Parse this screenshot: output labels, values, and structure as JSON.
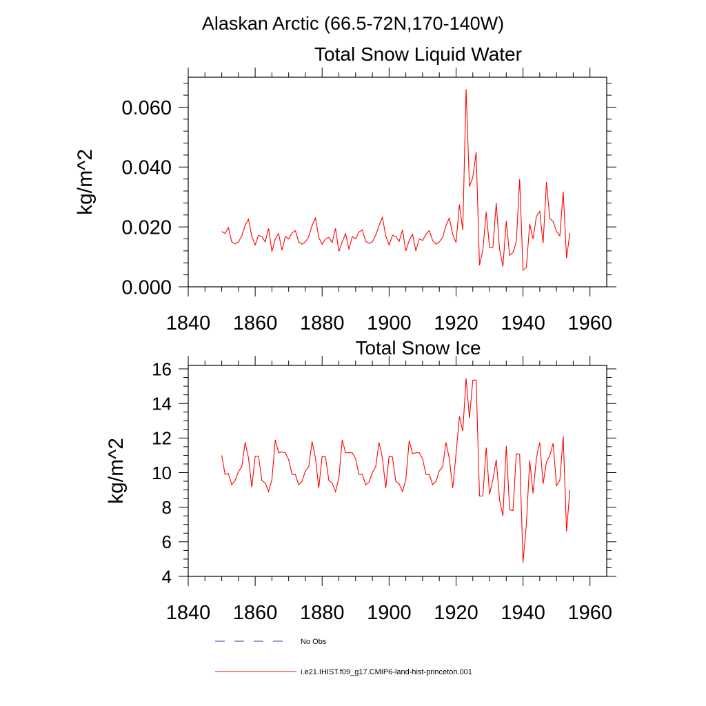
{
  "figure": {
    "title": "Alaskan Arctic (66.5-72N,170-140W)"
  },
  "legend": {
    "placement": "bottom-center",
    "entries": [
      {
        "label": "No Obs",
        "color": "#3a3aa0",
        "style": "dashed"
      },
      {
        "label": "i.e21.IHIST.f09_g17.CMIP6-land-hist-princeton.001",
        "color": "#ff0000",
        "style": "solid"
      }
    ]
  },
  "chart_data": [
    {
      "type": "line",
      "title": "Total Snow Liquid Water",
      "xlabel": "",
      "ylabel": "kg/m^2",
      "xlim": [
        1840,
        1965
      ],
      "ylim": [
        0,
        0.07
      ],
      "xticks": [
        1840,
        1860,
        1880,
        1900,
        1920,
        1940,
        1960
      ],
      "yticks": [
        0.0,
        0.02,
        0.04,
        0.06
      ],
      "ytick_labels": [
        "0.000",
        "0.020",
        "0.040",
        "0.060"
      ],
      "grid": false,
      "series": [
        {
          "name": "i.e21.IHIST.f09_g17.CMIP6-land-hist-princeton.001",
          "color": "#ff0000",
          "x": [
            1850,
            1851,
            1852,
            1853,
            1854,
            1855,
            1856,
            1857,
            1858,
            1859,
            1860,
            1861,
            1862,
            1863,
            1864,
            1865,
            1866,
            1867,
            1868,
            1869,
            1870,
            1871,
            1872,
            1873,
            1874,
            1875,
            1876,
            1877,
            1878,
            1879,
            1880,
            1881,
            1882,
            1883,
            1884,
            1885,
            1886,
            1887,
            1888,
            1889,
            1890,
            1891,
            1892,
            1893,
            1894,
            1895,
            1896,
            1897,
            1898,
            1899,
            1900,
            1901,
            1902,
            1903,
            1904,
            1905,
            1906,
            1907,
            1908,
            1909,
            1910,
            1911,
            1912,
            1913,
            1914,
            1915,
            1916,
            1917,
            1918,
            1919,
            1920,
            1921,
            1922,
            1923,
            1924,
            1925,
            1926,
            1927,
            1928,
            1929,
            1930,
            1931,
            1932,
            1933,
            1934,
            1935,
            1936,
            1937,
            1938,
            1939,
            1940,
            1941,
            1942,
            1943,
            1944,
            1945,
            1946,
            1947,
            1948,
            1949,
            1950,
            1951,
            1952,
            1953,
            1954
          ],
          "y": [
            0.0185,
            0.0178,
            0.0198,
            0.015,
            0.0143,
            0.015,
            0.017,
            0.0205,
            0.0226,
            0.0168,
            0.014,
            0.0172,
            0.0168,
            0.015,
            0.0195,
            0.0118,
            0.016,
            0.0178,
            0.0122,
            0.0168,
            0.016,
            0.018,
            0.0188,
            0.015,
            0.0142,
            0.015,
            0.0168,
            0.0205,
            0.023,
            0.0165,
            0.0142,
            0.016,
            0.0165,
            0.0148,
            0.0195,
            0.0118,
            0.015,
            0.0178,
            0.0125,
            0.0168,
            0.016,
            0.0183,
            0.019,
            0.0152,
            0.0145,
            0.015,
            0.0172,
            0.0205,
            0.0232,
            0.017,
            0.014,
            0.0172,
            0.0168,
            0.0152,
            0.019,
            0.012,
            0.0155,
            0.0175,
            0.012,
            0.016,
            0.0155,
            0.0175,
            0.0188,
            0.0155,
            0.0142,
            0.015,
            0.0165,
            0.0205,
            0.023,
            0.0175,
            0.0148,
            0.0275,
            0.019,
            0.066,
            0.0335,
            0.0365,
            0.045,
            0.0072,
            0.0122,
            0.025,
            0.0132,
            0.0132,
            0.028,
            0.0125,
            0.0068,
            0.022,
            0.0105,
            0.0115,
            0.015,
            0.036,
            0.0055,
            0.0065,
            0.021,
            0.016,
            0.0235,
            0.0252,
            0.0145,
            0.035,
            0.0228,
            0.0218,
            0.0185,
            0.017,
            0.0318,
            0.0095,
            0.018
          ]
        }
      ]
    },
    {
      "type": "line",
      "title": "Total Snow Ice",
      "xlabel": "",
      "ylabel": "kg/m^2",
      "xlim": [
        1840,
        1965
      ],
      "ylim": [
        4,
        16.2
      ],
      "xticks": [
        1840,
        1860,
        1880,
        1900,
        1920,
        1940,
        1960
      ],
      "yticks": [
        4,
        6,
        8,
        10,
        12,
        14,
        16
      ],
      "ytick_labels": [
        "4",
        "6",
        "8",
        "10",
        "12",
        "14",
        "16"
      ],
      "grid": false,
      "series": [
        {
          "name": "i.e21.IHIST.f09_g17.CMIP6-land-hist-princeton.001",
          "color": "#ff0000",
          "x": [
            1850,
            1851,
            1852,
            1853,
            1854,
            1855,
            1856,
            1857,
            1858,
            1859,
            1860,
            1861,
            1862,
            1863,
            1864,
            1865,
            1866,
            1867,
            1868,
            1869,
            1870,
            1871,
            1872,
            1873,
            1874,
            1875,
            1876,
            1877,
            1878,
            1879,
            1880,
            1881,
            1882,
            1883,
            1884,
            1885,
            1886,
            1887,
            1888,
            1889,
            1890,
            1891,
            1892,
            1893,
            1894,
            1895,
            1896,
            1897,
            1898,
            1899,
            1900,
            1901,
            1902,
            1903,
            1904,
            1905,
            1906,
            1907,
            1908,
            1909,
            1910,
            1911,
            1912,
            1913,
            1914,
            1915,
            1916,
            1917,
            1918,
            1919,
            1920,
            1921,
            1922,
            1923,
            1924,
            1925,
            1926,
            1927,
            1928,
            1929,
            1930,
            1931,
            1932,
            1933,
            1934,
            1935,
            1936,
            1937,
            1938,
            1939,
            1940,
            1941,
            1942,
            1943,
            1944,
            1945,
            1946,
            1947,
            1948,
            1949,
            1950,
            1951,
            1952,
            1953,
            1954
          ],
          "y": [
            11.0,
            9.9,
            9.95,
            9.3,
            9.55,
            10.05,
            10.35,
            11.75,
            10.85,
            9.15,
            10.95,
            10.95,
            9.55,
            9.4,
            8.9,
            9.6,
            11.9,
            11.15,
            11.2,
            11.15,
            10.75,
            9.9,
            9.9,
            9.3,
            9.5,
            10.1,
            10.35,
            11.8,
            10.85,
            9.1,
            10.95,
            10.9,
            9.55,
            9.4,
            8.9,
            9.7,
            11.9,
            11.15,
            11.15,
            11.15,
            10.8,
            9.9,
            9.9,
            9.3,
            9.45,
            10.0,
            10.35,
            11.75,
            10.85,
            9.1,
            10.95,
            10.9,
            9.5,
            9.35,
            8.9,
            9.6,
            11.85,
            11.1,
            11.15,
            11.15,
            10.8,
            9.9,
            9.9,
            9.3,
            9.5,
            10.1,
            10.35,
            11.75,
            10.8,
            9.1,
            11.1,
            13.25,
            12.4,
            15.45,
            13.15,
            15.35,
            15.35,
            8.65,
            8.65,
            11.45,
            8.75,
            9.6,
            10.75,
            8.4,
            7.5,
            11.55,
            7.85,
            7.8,
            11.1,
            11.05,
            4.8,
            7.0,
            10.7,
            8.8,
            10.85,
            11.75,
            9.35,
            10.6,
            11.0,
            11.7,
            9.25,
            9.55,
            12.1,
            6.6,
            9.0
          ]
        }
      ]
    }
  ]
}
